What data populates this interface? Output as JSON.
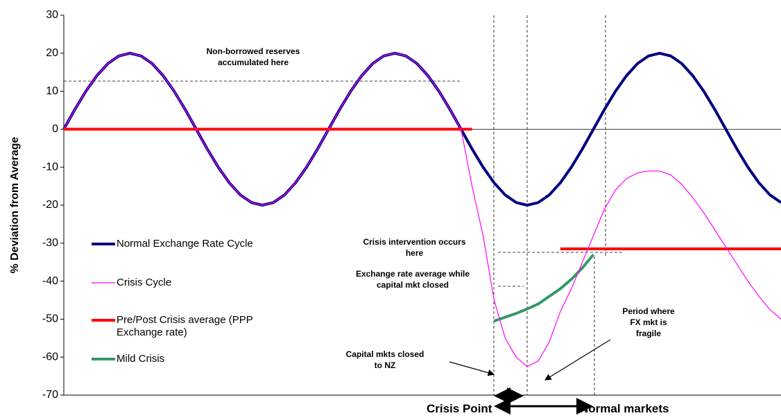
{
  "chart_data": {
    "type": "line",
    "ylabel": "% Deviation from Average",
    "x": [
      0,
      1,
      2,
      3,
      4,
      5,
      6,
      7,
      8,
      9,
      10,
      11,
      12,
      13,
      14,
      15,
      16,
      17,
      18,
      19,
      20,
      21,
      22,
      23,
      24,
      25,
      26,
      27,
      28,
      29,
      30,
      31,
      32,
      33,
      34,
      35,
      36,
      37,
      38,
      39,
      40,
      41,
      42,
      43,
      44,
      45,
      46,
      47,
      48,
      49,
      50,
      51,
      52,
      53,
      54,
      55,
      56,
      57,
      58,
      59,
      60,
      61,
      62,
      63,
      64,
      65
    ],
    "xlim": [
      0,
      65
    ],
    "ylim": [
      -70,
      30
    ],
    "yticks": [
      -70,
      -60,
      -50,
      -40,
      -30,
      -20,
      -10,
      0,
      10,
      20,
      30
    ],
    "series": [
      {
        "name": "Normal Exchange Rate Cycle",
        "color": "#000080",
        "values": [
          0,
          5.2,
          10,
          14.1,
          17.3,
          19.3,
          20,
          19.3,
          17.3,
          14.1,
          10,
          5.2,
          0,
          -5.2,
          -10,
          -14.1,
          -17.3,
          -19.3,
          -20,
          -19.3,
          -17.3,
          -14.1,
          -10,
          -5.2,
          0,
          5.2,
          10,
          14.1,
          17.3,
          19.3,
          20,
          19.3,
          17.3,
          14.1,
          10,
          5.2,
          0,
          -5.2,
          -10,
          -14.1,
          -17.3,
          -19.3,
          -20,
          -19.3,
          -17.3,
          -14.1,
          -10,
          -5.2,
          0,
          5.2,
          10,
          14.1,
          17.3,
          19.3,
          20,
          19.3,
          17.3,
          14.1,
          10,
          5.2,
          0,
          -5.2,
          -10,
          -14.1,
          -17.3,
          -19.3
        ]
      },
      {
        "name": "Crisis Cycle",
        "color": "#ff00ff",
        "values": [
          0,
          5.2,
          10,
          14.1,
          17.3,
          19.3,
          20,
          19.3,
          17.3,
          14.1,
          10,
          5.2,
          0,
          -5.2,
          -10,
          -14.1,
          -17.3,
          -19.3,
          -20,
          -19.3,
          -17.3,
          -14.1,
          -10,
          -5.2,
          0,
          5.2,
          10,
          14.1,
          17.3,
          19.3,
          20,
          19.3,
          17.3,
          14.1,
          10,
          5.2,
          0,
          -15,
          -28,
          -45,
          -55,
          -60,
          -62.5,
          -61,
          -56,
          -48,
          -42,
          -35,
          -28,
          -21,
          -16,
          -13,
          -11.5,
          -11,
          -11,
          -12,
          -14.5,
          -18,
          -22,
          -26.5,
          -31,
          -35.5,
          -40,
          -44,
          -47.5,
          -50
        ]
      },
      {
        "name": "Pre/Post Crisis average (PPP Exchange rate)",
        "color": "#ff0000",
        "values": [
          0,
          0,
          0,
          0,
          0,
          0,
          0,
          0,
          0,
          0,
          0,
          0,
          0,
          0,
          0,
          0,
          0,
          0,
          0,
          0,
          0,
          0,
          0,
          0,
          0,
          0,
          0,
          0,
          0,
          0,
          0,
          0,
          0,
          0,
          0,
          0,
          0,
          0,
          null,
          null,
          null,
          null,
          null,
          null,
          null,
          -31.5,
          -31.5,
          -31.5,
          -31.5,
          -31.5,
          -31.5,
          -31.5,
          -31.5,
          -31.5,
          -31.5,
          -31.5,
          -31.5,
          -31.5,
          -31.5,
          -31.5,
          -31.5,
          -31.5,
          -31.5,
          -31.5,
          -31.5,
          -31.5
        ]
      },
      {
        "name": "Mild Crisis",
        "color": "#339966",
        "values": [
          null,
          null,
          null,
          null,
          null,
          null,
          null,
          null,
          null,
          null,
          null,
          null,
          null,
          null,
          null,
          null,
          null,
          null,
          null,
          null,
          null,
          null,
          null,
          null,
          null,
          null,
          null,
          null,
          null,
          null,
          null,
          null,
          null,
          null,
          null,
          null,
          null,
          null,
          null,
          -50.5,
          -49.5,
          -48.5,
          -47.3,
          -46,
          -44,
          -42,
          -39.5,
          -36.5,
          -33,
          null,
          null,
          null,
          null,
          null,
          null,
          null,
          null,
          null,
          null,
          null,
          null,
          null,
          null,
          null,
          null,
          null
        ]
      }
    ],
    "annotations": [
      "Non-borrowed reserves accumulated here",
      "Crisis intervention occurs here",
      "Exchange rate average while capital mkt closed",
      "Capital mkts closed to NZ",
      "Period where FX mkt is fragile",
      "Crisis Point",
      "Normal markets"
    ]
  }
}
